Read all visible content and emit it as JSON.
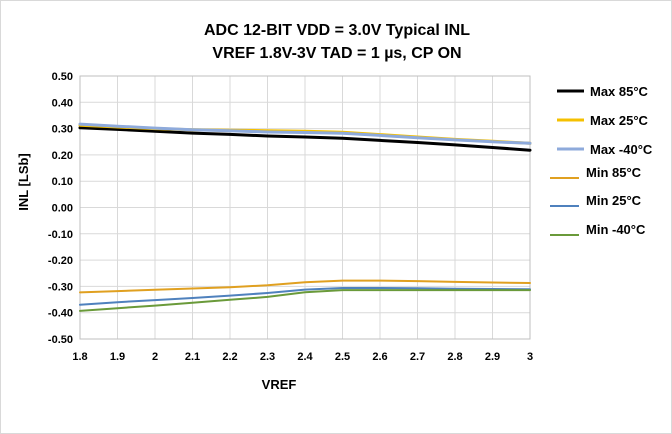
{
  "chart_data": {
    "type": "line",
    "title": "ADC 12-BIT VDD = 3.0V Typical INL",
    "subtitle": "VREF 1.8V-3V TAD = 1 µs, CP ON",
    "xlabel": "VREF",
    "ylabel": "INL [LSb]",
    "xlim": [
      1.8,
      3.0
    ],
    "ylim": [
      -0.5,
      0.5
    ],
    "x_ticks": [
      "1.8",
      "1.9",
      "2",
      "2.1",
      "2.2",
      "2.3",
      "2.4",
      "2.5",
      "2.6",
      "2.7",
      "2.8",
      "2.9",
      "3"
    ],
    "y_ticks": [
      "0.50",
      "0.40",
      "0.30",
      "0.20",
      "0.10",
      "0.00",
      "-0.10",
      "-0.20",
      "-0.30",
      "-0.40",
      "-0.50"
    ],
    "grid": true,
    "legend_position": "right",
    "x": [
      1.8,
      1.9,
      2.0,
      2.1,
      2.2,
      2.3,
      2.4,
      2.5,
      2.6,
      2.7,
      2.8,
      2.9,
      3.0
    ],
    "series": [
      {
        "name": "Max  85°C",
        "color": "#000000",
        "width": "thick",
        "values": [
          0.303,
          0.297,
          0.29,
          0.283,
          0.278,
          0.272,
          0.268,
          0.263,
          0.255,
          0.247,
          0.238,
          0.228,
          0.218
        ]
      },
      {
        "name": "Max 25°C",
        "color": "#f5c000",
        "width": "thick",
        "values": [
          0.313,
          0.306,
          0.3,
          0.296,
          0.294,
          0.292,
          0.29,
          0.286,
          0.277,
          0.268,
          0.259,
          0.252,
          0.244
        ]
      },
      {
        "name": "Max -40°C",
        "color": "#8eaadb",
        "width": "thick",
        "values": [
          0.317,
          0.309,
          0.302,
          0.296,
          0.292,
          0.287,
          0.285,
          0.282,
          0.274,
          0.265,
          0.257,
          0.25,
          0.244
        ]
      },
      {
        "name": "Min 85°C",
        "color": "#e0a020",
        "width": "thin",
        "values": [
          -0.323,
          -0.318,
          -0.313,
          -0.308,
          -0.303,
          -0.296,
          -0.284,
          -0.278,
          -0.278,
          -0.28,
          -0.283,
          -0.285,
          -0.287
        ]
      },
      {
        "name": "Min 25°C",
        "color": "#4f81bd",
        "width": "thin",
        "values": [
          -0.37,
          -0.36,
          -0.352,
          -0.344,
          -0.335,
          -0.325,
          -0.312,
          -0.306,
          -0.306,
          -0.307,
          -0.309,
          -0.31,
          -0.311
        ]
      },
      {
        "name": "Min -40°C",
        "color": "#6a9a3a",
        "width": "thin",
        "values": [
          -0.393,
          -0.383,
          -0.373,
          -0.362,
          -0.351,
          -0.34,
          -0.322,
          -0.314,
          -0.314,
          -0.314,
          -0.314,
          -0.314,
          -0.314
        ]
      }
    ]
  }
}
